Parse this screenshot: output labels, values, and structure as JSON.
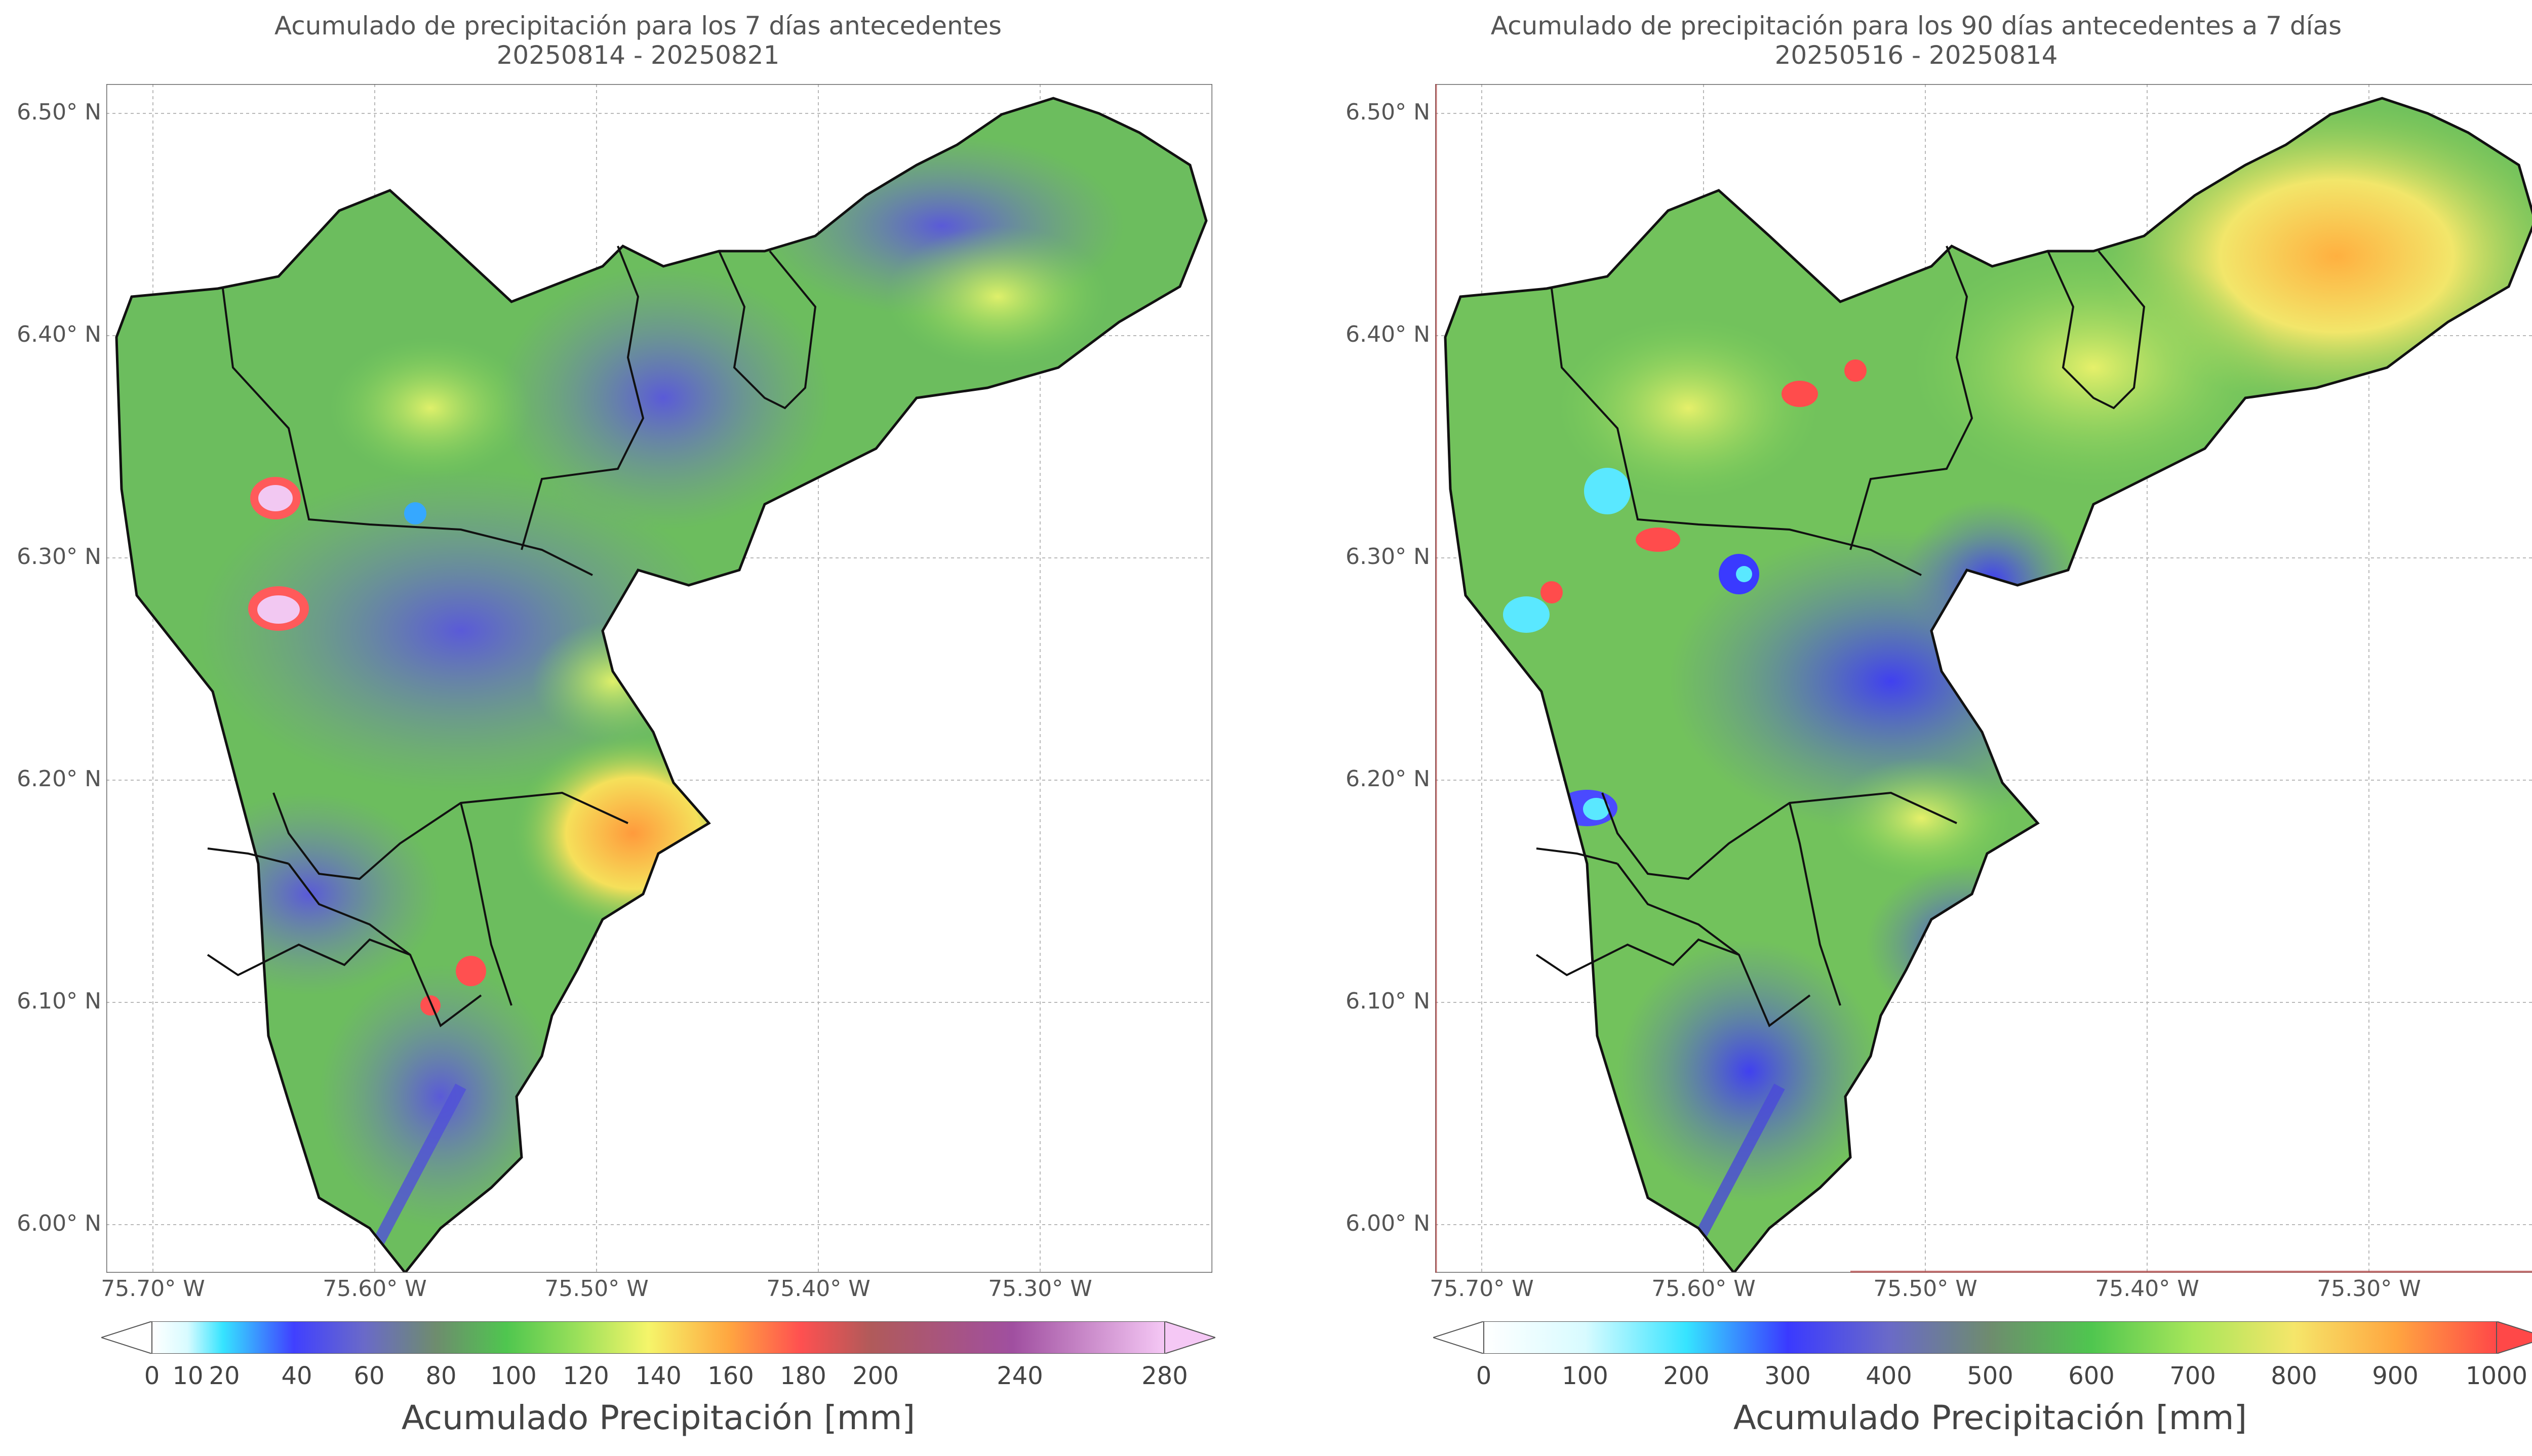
{
  "panels": [
    {
      "title_line1": "Acumulado de precipitación para los 7 días antecedentes",
      "title_line2": "20250814 - 20250821",
      "lat_labels": [
        "6.50° N",
        "6.40° N",
        "6.30° N",
        "6.20° N",
        "6.10° N",
        "6.00° N"
      ],
      "lon_labels": [
        "75.70° W",
        "75.60° W",
        "75.50° W",
        "75.40° W",
        "75.30° W"
      ],
      "colorbar": {
        "label": "Acumulado Precipitación [mm]",
        "ticks": [
          "0",
          "10",
          "20",
          "40",
          "60",
          "80",
          "100",
          "120",
          "140",
          "160",
          "180",
          "200",
          "240",
          "280"
        ],
        "tick_values": [
          0,
          10,
          20,
          40,
          60,
          80,
          100,
          120,
          140,
          160,
          180,
          200,
          240,
          280
        ],
        "range": [
          0,
          280
        ],
        "extend": "both",
        "colors": [
          "#ffffff",
          "#d8fbff",
          "#36e4ff",
          "#4040ff",
          "#6a6ac8",
          "#6e8c6e",
          "#4fc64f",
          "#9ae05a",
          "#f5f56a",
          "#ffa640",
          "#ff5050",
          "#b05a5a",
          "#a04fa0",
          "#f5c8f5"
        ]
      }
    },
    {
      "title_line1": "Acumulado de precipitación para los 90 días antecedentes a 7 días",
      "title_line2": "20250516 - 20250814",
      "lat_labels": [
        "6.50° N",
        "6.40° N",
        "6.30° N",
        "6.20° N",
        "6.10° N",
        "6.00° N"
      ],
      "lon_labels": [
        "75.70° W",
        "75.60° W",
        "75.50° W",
        "75.40° W",
        "75.30° W"
      ],
      "colorbar": {
        "label": "Acumulado Precipitación [mm]",
        "ticks": [
          "0",
          "100",
          "200",
          "300",
          "400",
          "500",
          "600",
          "700",
          "800",
          "900",
          "1000"
        ],
        "tick_values": [
          0,
          100,
          200,
          300,
          400,
          500,
          600,
          700,
          800,
          900,
          1000
        ],
        "range": [
          0,
          1000
        ],
        "extend": "both",
        "colors": [
          "#ffffff",
          "#d8fbff",
          "#36e4ff",
          "#3a3aff",
          "#6a6ac8",
          "#6e8c6e",
          "#4fc64f",
          "#a8e65a",
          "#f5e66a",
          "#ffa640",
          "#ff4848"
        ]
      }
    }
  ]
}
